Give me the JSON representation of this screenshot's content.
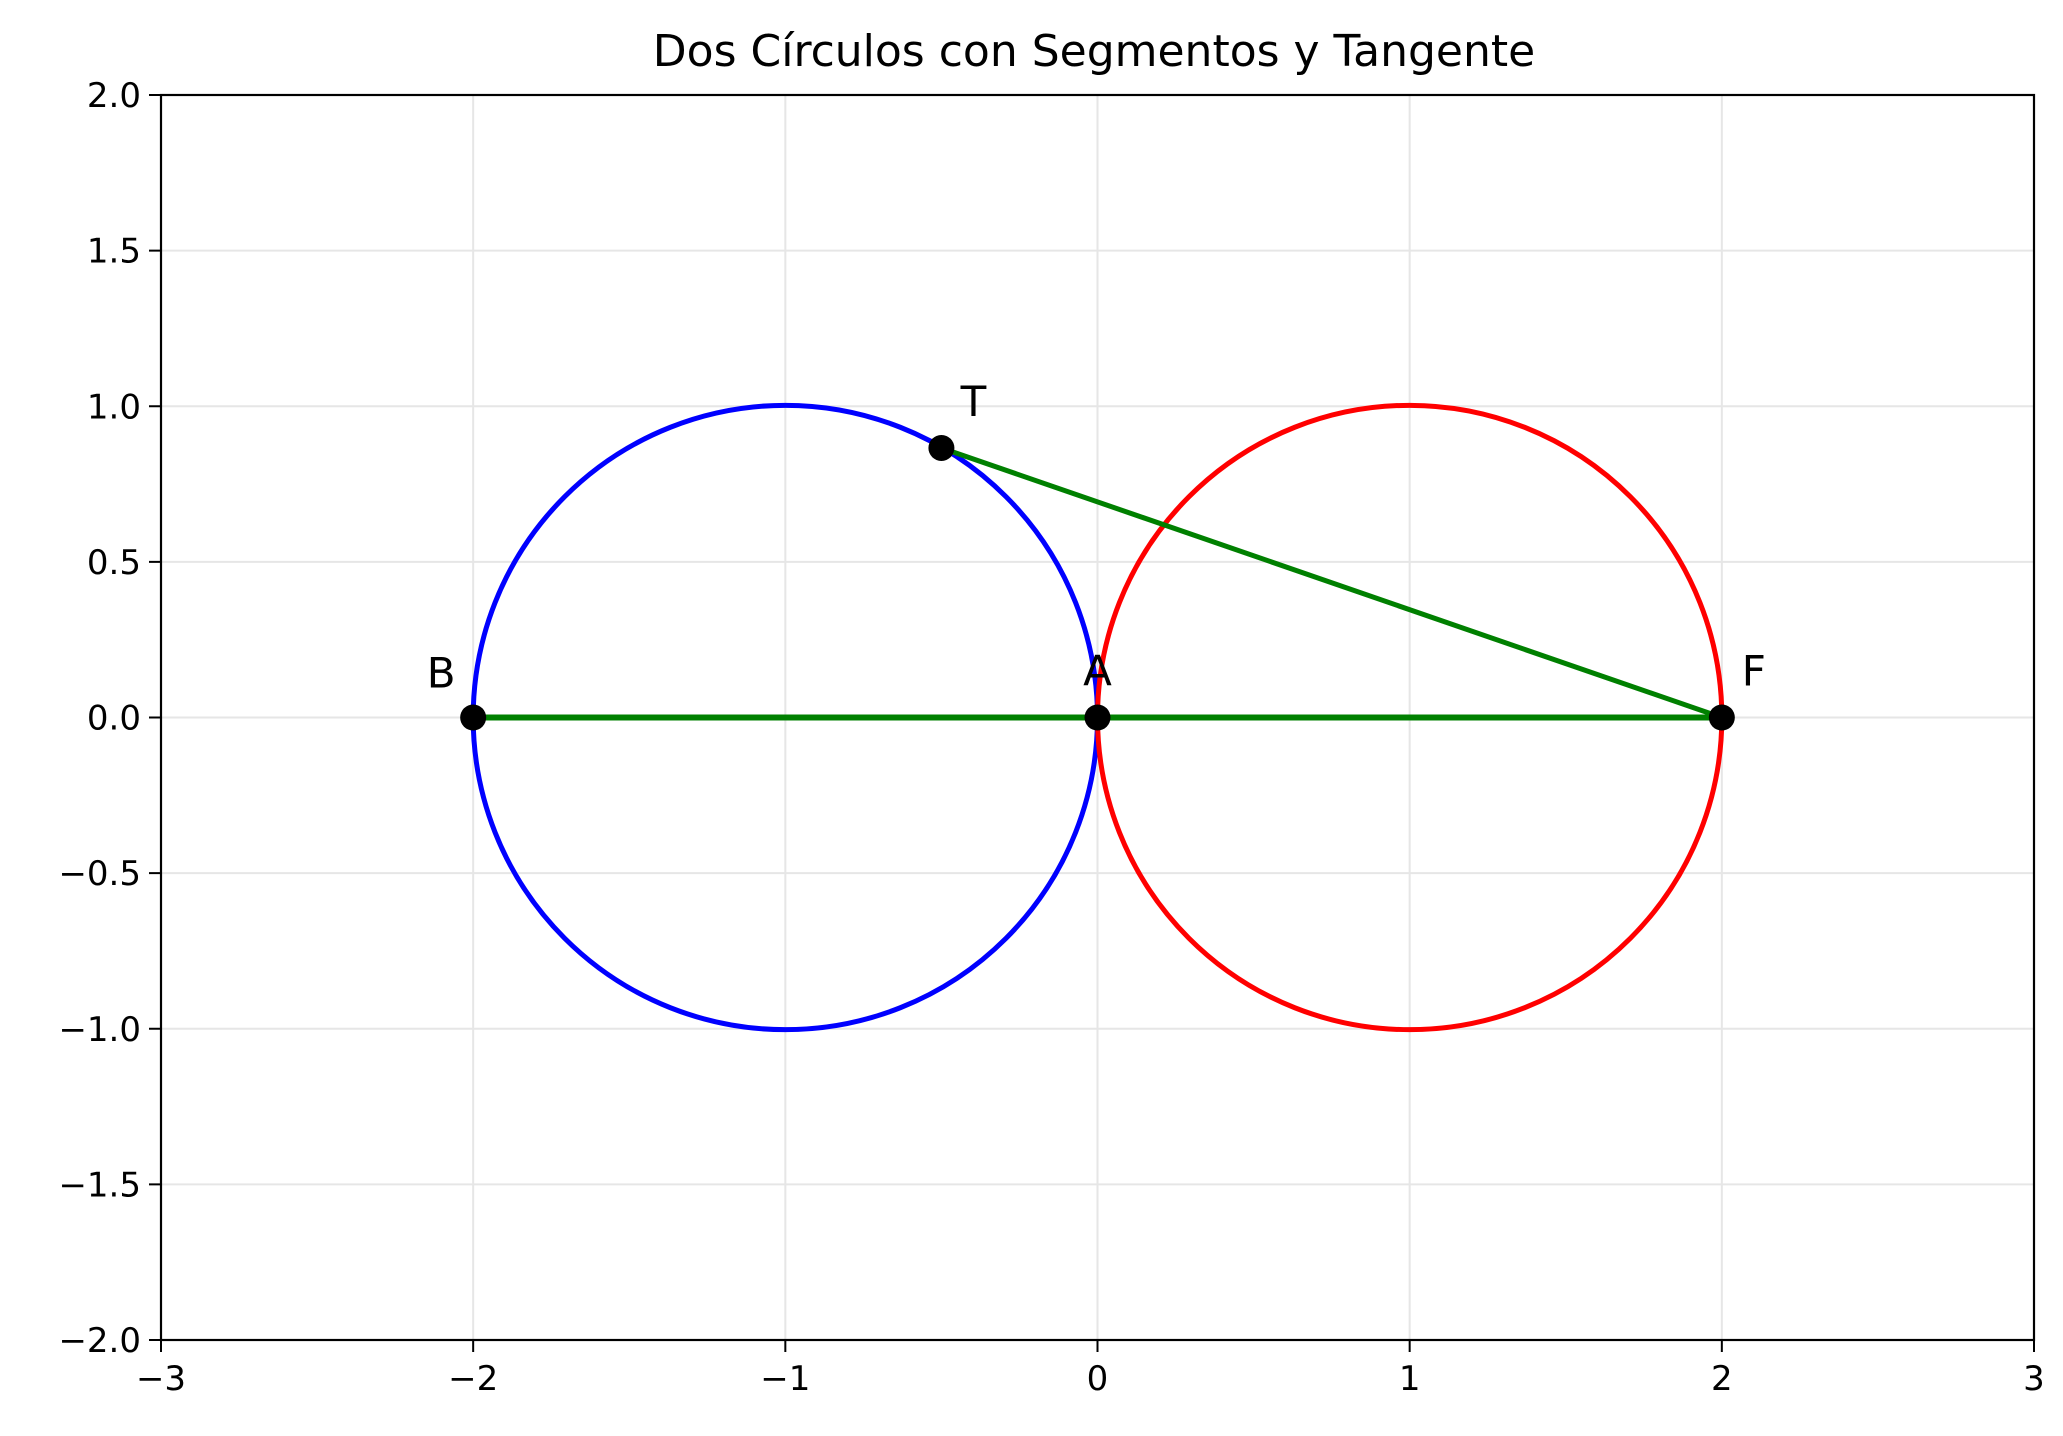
{
  "chart_data": {
    "type": "geometry",
    "title": "Dos Círculos con Segmentos y Tangente",
    "xlim": [
      -3,
      3
    ],
    "ylim": [
      -2,
      2
    ],
    "grid": true,
    "xticks": [
      {
        "value": -3,
        "label": "−3"
      },
      {
        "value": -2,
        "label": "−2"
      },
      {
        "value": -1,
        "label": "−1"
      },
      {
        "value": 0,
        "label": "0"
      },
      {
        "value": 1,
        "label": "1"
      },
      {
        "value": 2,
        "label": "2"
      },
      {
        "value": 3,
        "label": "3"
      }
    ],
    "yticks": [
      {
        "value": 2.0,
        "label": "2.0"
      },
      {
        "value": 1.5,
        "label": "1.5"
      },
      {
        "value": 1.0,
        "label": "1.0"
      },
      {
        "value": 0.5,
        "label": "0.5"
      },
      {
        "value": 0.0,
        "label": "0.0"
      },
      {
        "value": -0.5,
        "label": "−0.5"
      },
      {
        "value": -1.0,
        "label": "−1.0"
      },
      {
        "value": -1.5,
        "label": "−1.5"
      },
      {
        "value": -2.0,
        "label": "−2.0"
      }
    ],
    "circles": [
      {
        "cx": -1,
        "cy": 0,
        "r": 1,
        "color": "#0000ff"
      },
      {
        "cx": 1,
        "cy": 0,
        "r": 1,
        "color": "#ff0000"
      }
    ],
    "segments": [
      {
        "from": "B",
        "to": "F",
        "color": "#008000"
      },
      {
        "from": "T",
        "to": "F",
        "color": "#008000"
      }
    ],
    "points": [
      {
        "label": "B",
        "x": -2,
        "y": 0,
        "label_position": "upper-left"
      },
      {
        "label": "A",
        "x": 0,
        "y": 0,
        "label_position": "above"
      },
      {
        "label": "F",
        "x": 2,
        "y": 0,
        "label_position": "upper-right"
      },
      {
        "label": "T",
        "x": -0.5,
        "y": 0.866,
        "label_position": "upper-right"
      }
    ],
    "colors": {
      "axes": "#000000",
      "grid": "#e6e6e6",
      "point": "#000000"
    }
  }
}
